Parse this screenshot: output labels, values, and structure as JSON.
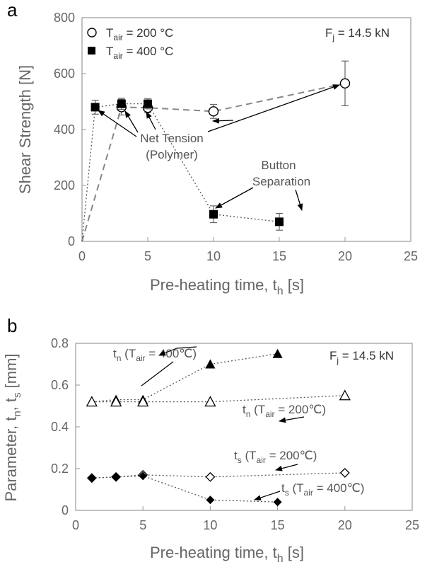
{
  "chart_data": [
    {
      "panel_label": "a",
      "type": "scatter",
      "xlabel_main": "Pre-heating time, t",
      "xlabel_sub": "h",
      "xlabel_unit": " [s]",
      "ylabel": "Shear Strength [N]",
      "xlim": [
        0,
        25
      ],
      "ylim": [
        0,
        800
      ],
      "x_ticks": [
        "0",
        "5",
        "10",
        "15",
        "20",
        "25"
      ],
      "y_ticks": [
        "0",
        "200",
        "400",
        "600",
        "800"
      ],
      "force_label": "F",
      "force_sub": "j",
      "force_value": " =  14.5 kN",
      "legend": [
        {
          "prefix": "T",
          "sub": "air",
          "suffix": " = 200 °C",
          "marker": "circle-open"
        },
        {
          "prefix": "T",
          "sub": "air",
          "suffix": " = 400 °C",
          "marker": "square-filled"
        }
      ],
      "series": [
        {
          "marker": "circle-open",
          "line": "dashed",
          "points": [
            [
              0,
              0
            ],
            [
              3,
              480
            ],
            [
              5,
              478
            ],
            [
              10,
              465
            ],
            [
              20,
              565
            ]
          ],
          "err": [
            null,
            28,
            18,
            25,
            80
          ]
        },
        {
          "marker": "square-filled",
          "line": "dotted",
          "points": [
            [
              0,
              0
            ],
            [
              1,
              480
            ],
            [
              3,
              492
            ],
            [
              5,
              492
            ],
            [
              10,
              97
            ],
            [
              15,
              70
            ]
          ],
          "err": [
            null,
            25,
            20,
            18,
            30,
            30
          ]
        }
      ],
      "annotations": {
        "net_tension": [
          "Net Tension",
          "(Polymer)"
        ],
        "button_separation": [
          "Button",
          "Separation"
        ]
      }
    },
    {
      "panel_label": "b",
      "type": "scatter",
      "xlabel_main": "Pre-heating time, t",
      "xlabel_sub": "h",
      "xlabel_unit": " [s]",
      "ylabel_parts": [
        "Parameter, t",
        "n",
        ", t",
        "s",
        " [mm]"
      ],
      "xlim": [
        0,
        25
      ],
      "ylim": [
        0,
        0.8
      ],
      "x_ticks": [
        "0",
        "5",
        "10",
        "15",
        "20",
        "25"
      ],
      "y_ticks": [
        "0",
        "0.2",
        "0.4",
        "0.6",
        "0.8"
      ],
      "force_label": "F",
      "force_sub": "j",
      "force_value": " =  14.5 kN",
      "series": [
        {
          "label_main": "t",
          "label_sub": "n",
          "label_mid": " (T",
          "label_sub2": "air",
          "label_end": " = 400℃)",
          "marker": "triangle-filled",
          "line": "dotted",
          "points": [
            [
              1.2,
              0.52
            ],
            [
              3,
              0.53
            ],
            [
              5,
              0.53
            ],
            [
              10,
              0.7
            ],
            [
              15,
              0.75
            ]
          ]
        },
        {
          "label_main": "t",
          "label_sub": "n",
          "label_mid": " (T",
          "label_sub2": "air",
          "label_end": " = 200℃)",
          "marker": "triangle-open",
          "line": "dotted",
          "points": [
            [
              1.2,
              0.52
            ],
            [
              3,
              0.52
            ],
            [
              5,
              0.52
            ],
            [
              10,
              0.52
            ],
            [
              20,
              0.55
            ]
          ]
        },
        {
          "label_main": "t",
          "label_sub": "s",
          "label_mid": " (T",
          "label_sub2": "air",
          "label_end": " = 200℃)",
          "marker": "diamond-open",
          "line": "dotted",
          "points": [
            [
              1.2,
              0.155
            ],
            [
              3,
              0.16
            ],
            [
              5,
              0.17
            ],
            [
              10,
              0.16
            ],
            [
              20,
              0.18
            ]
          ]
        },
        {
          "label_main": "t",
          "label_sub": "s",
          "label_mid": " (T",
          "label_sub2": "air",
          "label_end": " = 400℃)",
          "marker": "diamond-filled",
          "line": "dotted",
          "points": [
            [
              1.2,
              0.155
            ],
            [
              3,
              0.16
            ],
            [
              5,
              0.165
            ],
            [
              10,
              0.05
            ],
            [
              15,
              0.04
            ]
          ]
        }
      ]
    }
  ]
}
